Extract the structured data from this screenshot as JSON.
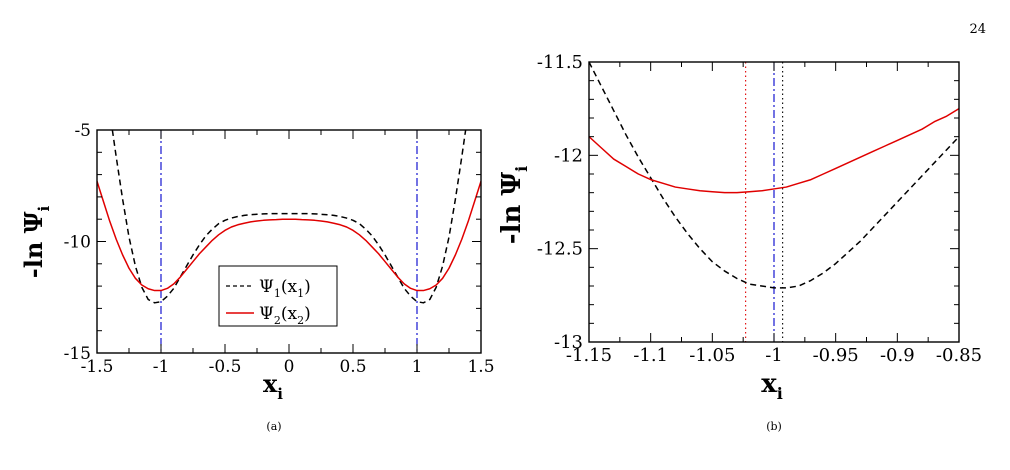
{
  "page_number": "24",
  "chart_data": [
    {
      "panel": "(a)",
      "type": "line",
      "xlabel_main": "x",
      "xlabel_sub": "i",
      "ylabel_main": "-ln Ψ",
      "ylabel_sub": "i",
      "xlim": [
        -1.5,
        1.5
      ],
      "ylim": [
        -15,
        -5
      ],
      "xticks": [
        -1.5,
        -1,
        -0.5,
        0,
        0.5,
        1,
        1.5
      ],
      "xtick_labels": [
        "-1.5",
        "-1",
        "-0.5",
        "0",
        "0.5",
        "1",
        "1.5"
      ],
      "yticks": [
        -15,
        -10,
        -5
      ],
      "ytick_labels": [
        "-15",
        "-10",
        "-5"
      ],
      "vlines": [
        {
          "x": -1,
          "color": "#0000cc",
          "style": "dashdot"
        },
        {
          "x": 1,
          "color": "#0000cc",
          "style": "dashdot"
        }
      ],
      "legend": {
        "placement": "bottom-center"
      },
      "series": [
        {
          "name": "Ψ1(x1)",
          "name_main": "Ψ",
          "name_sub1": "1",
          "name_mid": "(x",
          "name_sub2": "1",
          "name_end": ")",
          "color": "#000000",
          "style": "dashed",
          "x": [
            -1.38,
            -1.35,
            -1.3,
            -1.25,
            -1.2,
            -1.15,
            -1.1,
            -1.05,
            -1.0,
            -0.95,
            -0.9,
            -0.85,
            -0.8,
            -0.75,
            -0.7,
            -0.65,
            -0.6,
            -0.55,
            -0.5,
            -0.45,
            -0.4,
            -0.35,
            -0.3,
            -0.25,
            -0.2,
            -0.15,
            -0.1,
            -0.05,
            0.0,
            0.05,
            0.1,
            0.15,
            0.2,
            0.25,
            0.3,
            0.35,
            0.4,
            0.45,
            0.5,
            0.55,
            0.6,
            0.65,
            0.7,
            0.75,
            0.8,
            0.85,
            0.9,
            0.95,
            1.0,
            1.05,
            1.1,
            1.15,
            1.2,
            1.25,
            1.3,
            1.35,
            1.38
          ],
          "y": [
            -5.0,
            -6.2,
            -8.1,
            -9.8,
            -11.1,
            -12.05,
            -12.6,
            -12.75,
            -12.7,
            -12.45,
            -12.1,
            -11.6,
            -11.1,
            -10.6,
            -10.15,
            -9.75,
            -9.45,
            -9.2,
            -9.05,
            -8.95,
            -8.88,
            -8.83,
            -8.8,
            -8.78,
            -8.76,
            -8.75,
            -8.75,
            -8.75,
            -8.75,
            -8.75,
            -8.75,
            -8.75,
            -8.76,
            -8.78,
            -8.8,
            -8.83,
            -8.88,
            -8.95,
            -9.05,
            -9.2,
            -9.45,
            -9.75,
            -10.15,
            -10.6,
            -11.1,
            -11.6,
            -12.1,
            -12.45,
            -12.7,
            -12.75,
            -12.6,
            -12.05,
            -11.1,
            -9.8,
            -8.1,
            -6.2,
            -5.0
          ]
        },
        {
          "name": "Ψ2(x2)",
          "name_main": "Ψ",
          "name_sub1": "2",
          "name_mid": "(x",
          "name_sub2": "2",
          "name_end": ")",
          "color": "#e00000",
          "style": "solid",
          "x": [
            -1.5,
            -1.45,
            -1.4,
            -1.35,
            -1.3,
            -1.25,
            -1.2,
            -1.15,
            -1.1,
            -1.05,
            -1.0,
            -0.95,
            -0.9,
            -0.85,
            -0.8,
            -0.75,
            -0.7,
            -0.65,
            -0.6,
            -0.55,
            -0.5,
            -0.45,
            -0.4,
            -0.35,
            -0.3,
            -0.25,
            -0.2,
            -0.15,
            -0.1,
            -0.05,
            0.0,
            0.05,
            0.1,
            0.15,
            0.2,
            0.25,
            0.3,
            0.35,
            0.4,
            0.45,
            0.5,
            0.55,
            0.6,
            0.65,
            0.7,
            0.75,
            0.8,
            0.85,
            0.9,
            0.95,
            1.0,
            1.05,
            1.1,
            1.15,
            1.2,
            1.25,
            1.3,
            1.35,
            1.4,
            1.45,
            1.5
          ],
          "y": [
            -7.3,
            -8.2,
            -9.1,
            -9.9,
            -10.6,
            -11.2,
            -11.65,
            -11.95,
            -12.12,
            -12.2,
            -12.2,
            -12.1,
            -11.9,
            -11.6,
            -11.25,
            -10.9,
            -10.55,
            -10.25,
            -9.95,
            -9.7,
            -9.5,
            -9.35,
            -9.25,
            -9.18,
            -9.12,
            -9.08,
            -9.05,
            -9.03,
            -9.02,
            -9.0,
            -9.0,
            -9.0,
            -9.02,
            -9.03,
            -9.05,
            -9.08,
            -9.12,
            -9.18,
            -9.25,
            -9.35,
            -9.5,
            -9.7,
            -9.95,
            -10.25,
            -10.55,
            -10.9,
            -11.25,
            -11.6,
            -11.9,
            -12.1,
            -12.2,
            -12.2,
            -12.12,
            -11.95,
            -11.65,
            -11.2,
            -10.6,
            -9.9,
            -9.1,
            -8.2,
            -7.3
          ]
        }
      ]
    },
    {
      "panel": "(b)",
      "type": "line",
      "xlabel_main": "x",
      "xlabel_sub": "i",
      "ylabel_main": "-ln Ψ",
      "ylabel_sub": "i",
      "xlim": [
        -1.15,
        -0.85
      ],
      "ylim": [
        -13,
        -11.5
      ],
      "xticks": [
        -1.15,
        -1.1,
        -1.05,
        -1,
        -0.95,
        -0.9,
        -0.85
      ],
      "xtick_labels": [
        "-1.15",
        "-1.1",
        "-1.05",
        "-1",
        "-0.95",
        "-0.9",
        "-0.85"
      ],
      "yticks": [
        -13,
        -12.5,
        -12,
        -11.5
      ],
      "ytick_labels": [
        "-13",
        "-12.5",
        "-12",
        "-11.5"
      ],
      "vlines": [
        {
          "x": -1.023,
          "color": "#e00000",
          "style": "dotted"
        },
        {
          "x": -1.0,
          "color": "#0000cc",
          "style": "dashdot"
        },
        {
          "x": -0.993,
          "color": "#000000",
          "style": "dotted"
        }
      ],
      "series": [
        {
          "name": "Ψ1(x1)",
          "color": "#000000",
          "style": "dashed",
          "x": [
            -1.15,
            -1.14,
            -1.13,
            -1.12,
            -1.11,
            -1.1,
            -1.09,
            -1.08,
            -1.07,
            -1.06,
            -1.05,
            -1.04,
            -1.03,
            -1.02,
            -1.01,
            -1.0,
            -0.99,
            -0.98,
            -0.97,
            -0.96,
            -0.95,
            -0.94,
            -0.93,
            -0.92,
            -0.91,
            -0.9,
            -0.89,
            -0.88,
            -0.87,
            -0.86,
            -0.85
          ],
          "y": [
            -11.5,
            -11.63,
            -11.76,
            -11.89,
            -12.01,
            -12.12,
            -12.23,
            -12.33,
            -12.42,
            -12.5,
            -12.57,
            -12.62,
            -12.66,
            -12.69,
            -12.7,
            -12.71,
            -12.71,
            -12.7,
            -12.67,
            -12.63,
            -12.58,
            -12.52,
            -12.46,
            -12.39,
            -12.32,
            -12.25,
            -12.18,
            -12.11,
            -12.04,
            -11.97,
            -11.9
          ]
        },
        {
          "name": "Ψ2(x2)",
          "color": "#e00000",
          "style": "solid",
          "x": [
            -1.15,
            -1.14,
            -1.13,
            -1.12,
            -1.11,
            -1.1,
            -1.09,
            -1.08,
            -1.07,
            -1.06,
            -1.05,
            -1.04,
            -1.03,
            -1.02,
            -1.01,
            -1.0,
            -0.99,
            -0.98,
            -0.97,
            -0.96,
            -0.95,
            -0.94,
            -0.93,
            -0.92,
            -0.91,
            -0.9,
            -0.89,
            -0.88,
            -0.87,
            -0.86,
            -0.85
          ],
          "y": [
            -11.9,
            -11.96,
            -12.02,
            -12.06,
            -12.1,
            -12.13,
            -12.15,
            -12.17,
            -12.18,
            -12.19,
            -12.195,
            -12.2,
            -12.2,
            -12.195,
            -12.19,
            -12.18,
            -12.17,
            -12.15,
            -12.13,
            -12.1,
            -12.07,
            -12.04,
            -12.01,
            -11.98,
            -11.95,
            -11.92,
            -11.89,
            -11.86,
            -11.82,
            -11.79,
            -11.75
          ]
        }
      ]
    }
  ]
}
